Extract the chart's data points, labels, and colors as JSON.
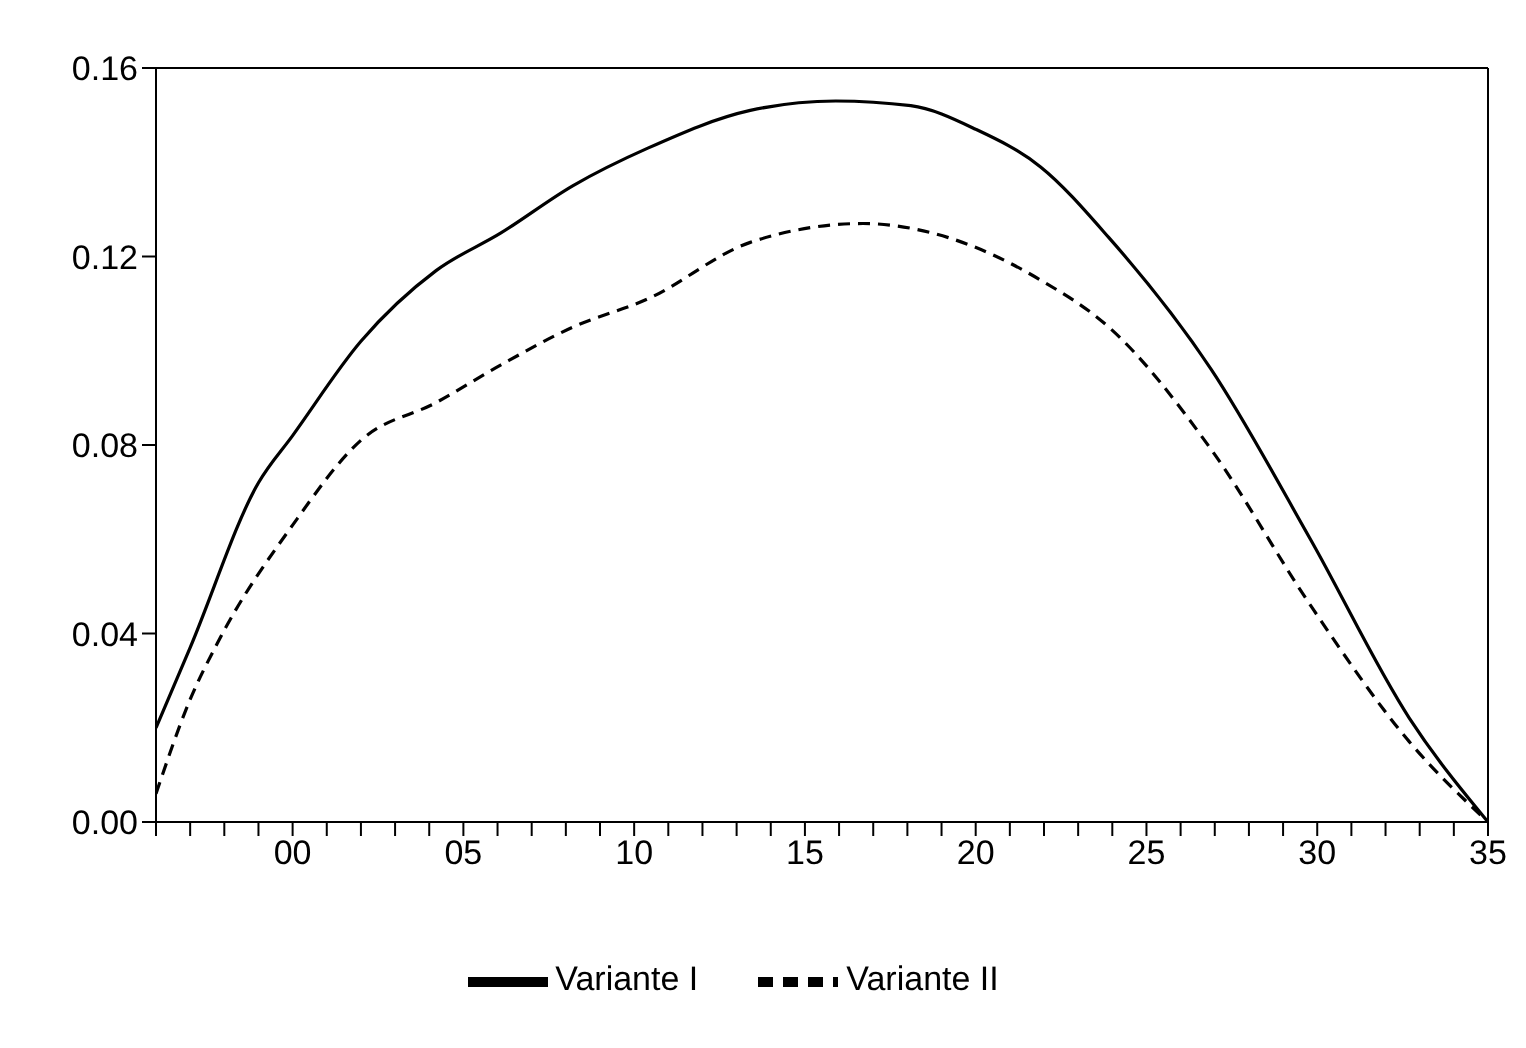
{
  "chart_data": {
    "type": "line",
    "legend": "bottom",
    "marker": "none",
    "xlim": [
      -4,
      35
    ],
    "ylim": [
      0,
      0.16
    ],
    "yticks": [
      {
        "value": 0,
        "label": "0.00"
      },
      {
        "value": 0.04,
        "label": "0.04"
      },
      {
        "value": 0.08,
        "label": "0.08"
      },
      {
        "value": 0.12,
        "label": "0.12"
      },
      {
        "value": 0.16,
        "label": "0.16"
      }
    ],
    "xticks": [
      {
        "value": -4,
        "label": null
      },
      {
        "value": -3,
        "label": null
      },
      {
        "value": -2,
        "label": null
      },
      {
        "value": -1,
        "label": null
      },
      {
        "value": 0,
        "label": "00"
      },
      {
        "value": 1,
        "label": null
      },
      {
        "value": 2,
        "label": null
      },
      {
        "value": 3,
        "label": null
      },
      {
        "value": 4,
        "label": null
      },
      {
        "value": 5,
        "label": "05"
      },
      {
        "value": 6,
        "label": null
      },
      {
        "value": 7,
        "label": null
      },
      {
        "value": 8,
        "label": null
      },
      {
        "value": 9,
        "label": null
      },
      {
        "value": 10,
        "label": "10"
      },
      {
        "value": 11,
        "label": null
      },
      {
        "value": 12,
        "label": null
      },
      {
        "value": 13,
        "label": null
      },
      {
        "value": 14,
        "label": null
      },
      {
        "value": 15,
        "label": "15"
      },
      {
        "value": 16,
        "label": null
      },
      {
        "value": 17,
        "label": null
      },
      {
        "value": 18,
        "label": null
      },
      {
        "value": 19,
        "label": null
      },
      {
        "value": 20,
        "label": "20"
      },
      {
        "value": 21,
        "label": null
      },
      {
        "value": 22,
        "label": null
      },
      {
        "value": 23,
        "label": null
      },
      {
        "value": 24,
        "label": null
      },
      {
        "value": 25,
        "label": "25"
      },
      {
        "value": 26,
        "label": null
      },
      {
        "value": 27,
        "label": null
      },
      {
        "value": 28,
        "label": null
      },
      {
        "value": 29,
        "label": null
      },
      {
        "value": 30,
        "label": "30"
      },
      {
        "value": 31,
        "label": null
      },
      {
        "value": 32,
        "label": null
      },
      {
        "value": 33,
        "label": null
      },
      {
        "value": 34,
        "label": null
      },
      {
        "value": 35,
        "label": "35"
      }
    ],
    "series": [
      {
        "name": "Variante I",
        "color": "#000000",
        "line_style": "solid",
        "x": [
          -4,
          -3,
          -1,
          0,
          2,
          4.2,
          6.1,
          8.2,
          10.4,
          13.4,
          15.9,
          18.1,
          20,
          21.9,
          23.9,
          26.9,
          29.8,
          32.7,
          35
        ],
        "values": [
          0.02,
          0.037,
          0.072,
          0.082,
          0.102,
          0.117,
          0.125,
          0.135,
          0.143,
          0.151,
          0.153,
          0.152,
          0.147,
          0.139,
          0.124,
          0.096,
          0.06,
          0.022,
          0
        ]
      },
      {
        "name": "Variante II",
        "color": "#000000",
        "line_style": "dashed",
        "x": [
          -4,
          -3,
          -2.2,
          0,
          2,
          4.2,
          6.1,
          8.2,
          10.4,
          13.4,
          16.7,
          19.2,
          21.9,
          23.9,
          26.9,
          29.8,
          32.7,
          35
        ],
        "values": [
          0.006,
          0.026,
          0.038,
          0.063,
          0.081,
          0.089,
          0.097,
          0.105,
          0.111,
          0.123,
          0.127,
          0.124,
          0.115,
          0.105,
          0.079,
          0.046,
          0.017,
          0
        ]
      }
    ]
  }
}
